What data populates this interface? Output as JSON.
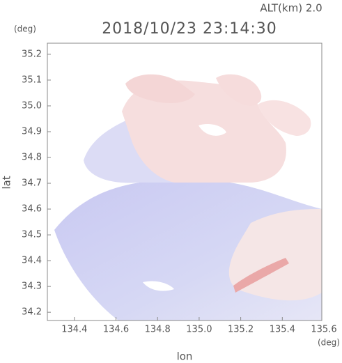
{
  "chart_data": {
    "type": "map",
    "title": "2018/10/23 23:14:30",
    "altitude_label": "ALT(km) 2.0",
    "y_unit": "(deg)",
    "x_unit": "(deg)",
    "x_label": "lon",
    "y_label": "lat",
    "xlim": [
      134.27,
      135.6
    ],
    "xticks": [
      134.4,
      134.6,
      134.8,
      {
        "value": 135.0,
        "label": "135.0"
      },
      135.2,
      135.4,
      135.6
    ],
    "ylim": [
      34.168,
      35.243
    ],
    "yticks": [
      35.2,
      35.1,
      {
        "value": 35.0,
        "label": "35.0"
      },
      34.9,
      34.8,
      34.7,
      34.6,
      34.5,
      34.4,
      34.3,
      34.2
    ]
  }
}
